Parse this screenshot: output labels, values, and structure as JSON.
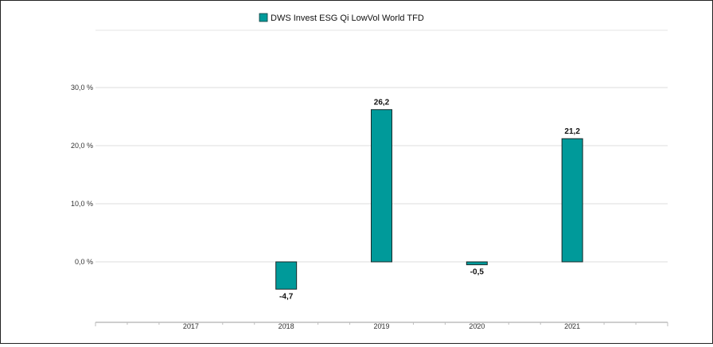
{
  "chart_data": {
    "type": "bar",
    "categories": [
      "2017",
      "2018",
      "2019",
      "2020",
      "2021"
    ],
    "series": [
      {
        "name": "DWS Invest ESG Qi LowVol World  TFD",
        "values": [
          null,
          -4.7,
          26.2,
          -0.5,
          21.2
        ],
        "value_labels": [
          "",
          "-4,7",
          "26,2",
          "-0,5",
          "21,2"
        ],
        "color": "#009a9a"
      }
    ],
    "y_ticks": [
      {
        "value": 0,
        "label": "0,0 %"
      },
      {
        "value": 10,
        "label": "10,0 %"
      },
      {
        "value": 20,
        "label": "20,0 %"
      },
      {
        "value": 30,
        "label": "30,0 %"
      }
    ],
    "ylim": [
      -9,
      40
    ],
    "grid": true,
    "legend": "top-center"
  }
}
